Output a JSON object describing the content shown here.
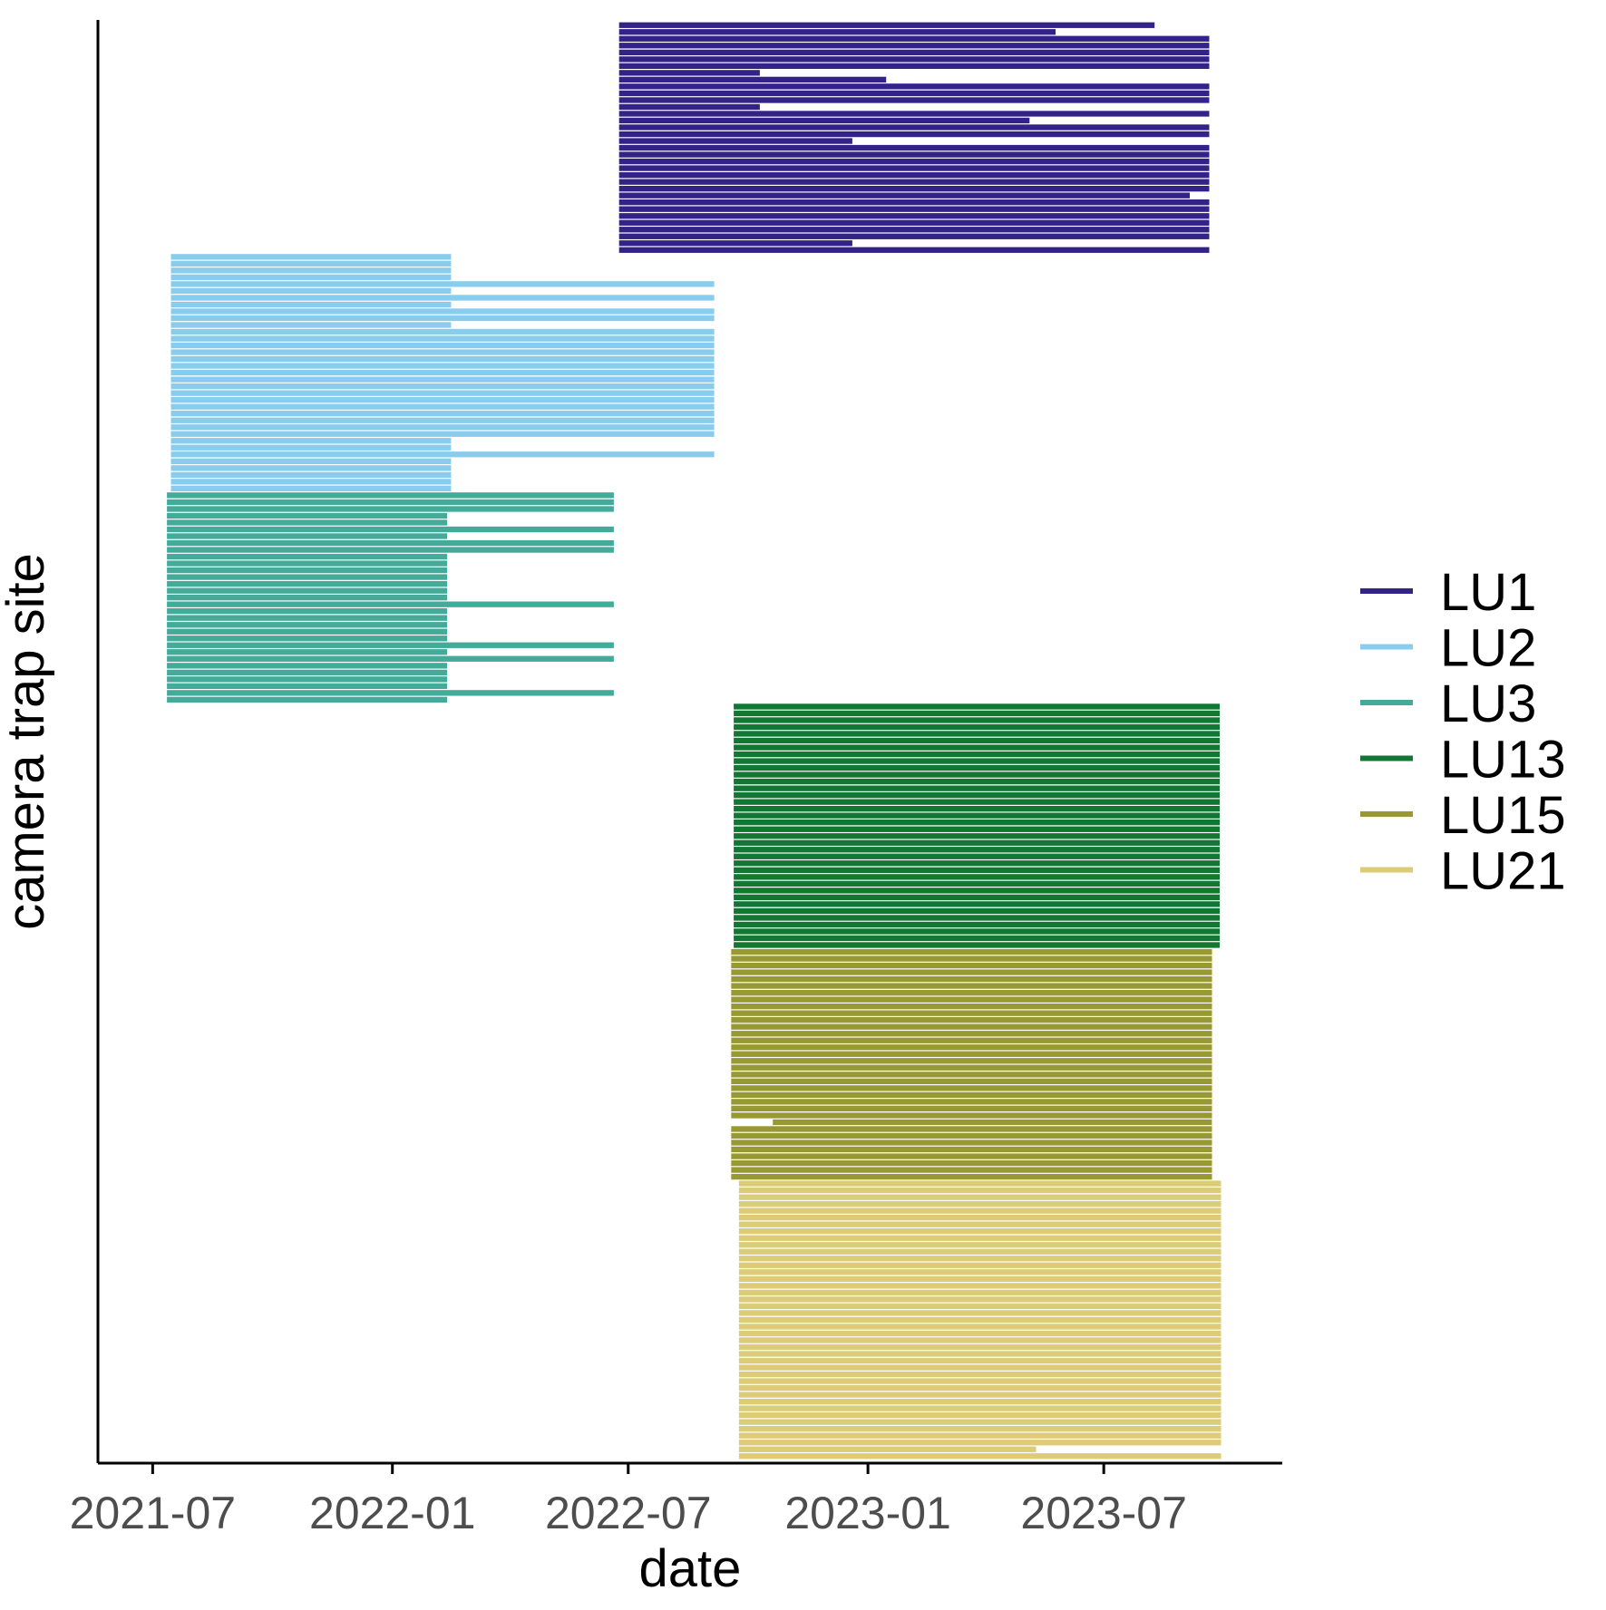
{
  "chart_data": {
    "type": "gantt-segments",
    "xlabel": "date",
    "ylabel": "camera trap site",
    "x_ticks": [
      "2021-07",
      "2022-01",
      "2022-07",
      "2023-01",
      "2023-07"
    ],
    "x_range": [
      "2021-05-20",
      "2023-11-15"
    ],
    "grid": false,
    "legend_placement": "right",
    "legend_order": [
      "LU1",
      "LU2",
      "LU3",
      "LU13",
      "LU15",
      "LU21"
    ],
    "series": [
      {
        "name": "LU1",
        "color": "#332288",
        "segments": [
          [
            "2022-06-24",
            "2023-08-09"
          ],
          [
            "2022-06-24",
            "2023-05-25"
          ],
          [
            "2022-06-24",
            "2023-09-20"
          ],
          [
            "2022-06-24",
            "2023-09-20"
          ],
          [
            "2022-06-24",
            "2023-09-20"
          ],
          [
            "2022-06-24",
            "2023-09-20"
          ],
          [
            "2022-06-24",
            "2023-09-20"
          ],
          [
            "2022-06-24",
            "2022-10-10"
          ],
          [
            "2022-06-24",
            "2023-01-15"
          ],
          [
            "2022-06-24",
            "2023-09-20"
          ],
          [
            "2022-06-24",
            "2023-09-20"
          ],
          [
            "2022-06-24",
            "2023-09-20"
          ],
          [
            "2022-06-24",
            "2022-10-10"
          ],
          [
            "2022-06-24",
            "2023-09-20"
          ],
          [
            "2022-06-24",
            "2023-05-05"
          ],
          [
            "2022-06-24",
            "2023-09-20"
          ],
          [
            "2022-06-24",
            "2023-09-20"
          ],
          [
            "2022-06-24",
            "2022-12-20"
          ],
          [
            "2022-06-24",
            "2023-09-20"
          ],
          [
            "2022-06-24",
            "2023-09-20"
          ],
          [
            "2022-06-24",
            "2023-09-20"
          ],
          [
            "2022-06-24",
            "2023-09-20"
          ],
          [
            "2022-06-24",
            "2023-09-20"
          ],
          [
            "2022-06-24",
            "2023-09-20"
          ],
          [
            "2022-06-24",
            "2023-09-20"
          ],
          [
            "2022-06-24",
            "2023-09-05"
          ],
          [
            "2022-06-24",
            "2023-09-20"
          ],
          [
            "2022-06-24",
            "2023-09-20"
          ],
          [
            "2022-06-24",
            "2023-09-20"
          ],
          [
            "2022-06-24",
            "2023-09-20"
          ],
          [
            "2022-06-24",
            "2023-09-20"
          ],
          [
            "2022-06-24",
            "2023-09-20"
          ],
          [
            "2022-06-24",
            "2022-12-20"
          ],
          [
            "2022-06-24",
            "2023-09-20"
          ]
        ]
      },
      {
        "name": "LU2",
        "color": "#88CCEE",
        "segments": [
          [
            "2021-07-15",
            "2022-02-15"
          ],
          [
            "2021-07-15",
            "2022-02-15"
          ],
          [
            "2021-07-15",
            "2022-02-15"
          ],
          [
            "2021-07-15",
            "2022-02-15"
          ],
          [
            "2021-07-15",
            "2022-09-05"
          ],
          [
            "2021-07-15",
            "2022-02-15"
          ],
          [
            "2021-07-15",
            "2022-09-05"
          ],
          [
            "2021-07-15",
            "2022-02-15"
          ],
          [
            "2021-07-15",
            "2022-09-05"
          ],
          [
            "2021-07-15",
            "2022-09-05"
          ],
          [
            "2021-07-15",
            "2022-02-15"
          ],
          [
            "2021-07-15",
            "2022-09-05"
          ],
          [
            "2021-07-15",
            "2022-09-05"
          ],
          [
            "2021-07-15",
            "2022-09-05"
          ],
          [
            "2021-07-15",
            "2022-09-05"
          ],
          [
            "2021-07-15",
            "2022-09-05"
          ],
          [
            "2021-07-15",
            "2022-09-05"
          ],
          [
            "2021-07-15",
            "2022-09-05"
          ],
          [
            "2021-07-15",
            "2022-09-05"
          ],
          [
            "2021-07-15",
            "2022-09-05"
          ],
          [
            "2021-07-15",
            "2022-09-05"
          ],
          [
            "2021-07-15",
            "2022-09-05"
          ],
          [
            "2021-07-15",
            "2022-09-05"
          ],
          [
            "2021-07-15",
            "2022-09-05"
          ],
          [
            "2021-07-15",
            "2022-09-05"
          ],
          [
            "2021-07-15",
            "2022-09-05"
          ],
          [
            "2021-07-15",
            "2022-09-05"
          ],
          [
            "2021-07-15",
            "2022-02-15"
          ],
          [
            "2021-07-15",
            "2022-02-15"
          ],
          [
            "2021-07-15",
            "2022-09-05"
          ],
          [
            "2021-07-15",
            "2022-02-15"
          ],
          [
            "2021-07-15",
            "2022-02-15"
          ],
          [
            "2021-07-15",
            "2022-02-15"
          ],
          [
            "2021-07-15",
            "2022-02-15"
          ],
          [
            "2021-07-15",
            "2022-02-15"
          ]
        ]
      },
      {
        "name": "LU3",
        "color": "#44AA99",
        "segments": [
          [
            "2021-07-12",
            "2022-06-20"
          ],
          [
            "2021-07-12",
            "2022-06-20"
          ],
          [
            "2021-07-12",
            "2022-06-20"
          ],
          [
            "2021-07-12",
            "2022-02-12"
          ],
          [
            "2021-07-12",
            "2022-02-12"
          ],
          [
            "2021-07-12",
            "2022-06-20"
          ],
          [
            "2021-07-12",
            "2022-02-12"
          ],
          [
            "2021-07-12",
            "2022-06-20"
          ],
          [
            "2021-07-12",
            "2022-06-20"
          ],
          [
            "2021-07-12",
            "2022-02-12"
          ],
          [
            "2021-07-12",
            "2022-02-12"
          ],
          [
            "2021-07-12",
            "2022-02-12"
          ],
          [
            "2021-07-12",
            "2022-02-12"
          ],
          [
            "2021-07-12",
            "2022-02-12"
          ],
          [
            "2021-07-12",
            "2022-02-12"
          ],
          [
            "2021-07-12",
            "2022-02-12"
          ],
          [
            "2021-07-12",
            "2022-06-20"
          ],
          [
            "2021-07-12",
            "2022-02-12"
          ],
          [
            "2021-07-12",
            "2022-02-12"
          ],
          [
            "2021-07-12",
            "2022-02-12"
          ],
          [
            "2021-07-12",
            "2022-02-12"
          ],
          [
            "2021-07-12",
            "2022-02-12"
          ],
          [
            "2021-07-12",
            "2022-06-20"
          ],
          [
            "2021-07-12",
            "2022-02-12"
          ],
          [
            "2021-07-12",
            "2022-06-20"
          ],
          [
            "2021-07-12",
            "2022-02-12"
          ],
          [
            "2021-07-12",
            "2022-02-12"
          ],
          [
            "2021-07-12",
            "2022-02-12"
          ],
          [
            "2021-07-12",
            "2022-02-12"
          ],
          [
            "2021-07-12",
            "2022-06-20"
          ],
          [
            "2021-07-12",
            "2022-02-12"
          ]
        ]
      },
      {
        "name": "LU13",
        "color": "#117733",
        "rows": 36,
        "segments_all": [
          "2022-09-20",
          "2023-09-28"
        ]
      },
      {
        "name": "LU15",
        "color": "#999933",
        "rows": 34,
        "segments_all": [
          "2022-09-18",
          "2023-09-22"
        ],
        "short_row": {
          "index": 25,
          "segment": [
            "2022-10-20",
            "2023-09-22"
          ]
        }
      },
      {
        "name": "LU21",
        "color": "#DDCC77",
        "rows": 41,
        "segments_all": [
          "2022-09-24",
          "2023-09-29"
        ],
        "short_row": {
          "index": 39,
          "segment": [
            "2022-09-24",
            "2023-05-10"
          ]
        }
      }
    ]
  }
}
